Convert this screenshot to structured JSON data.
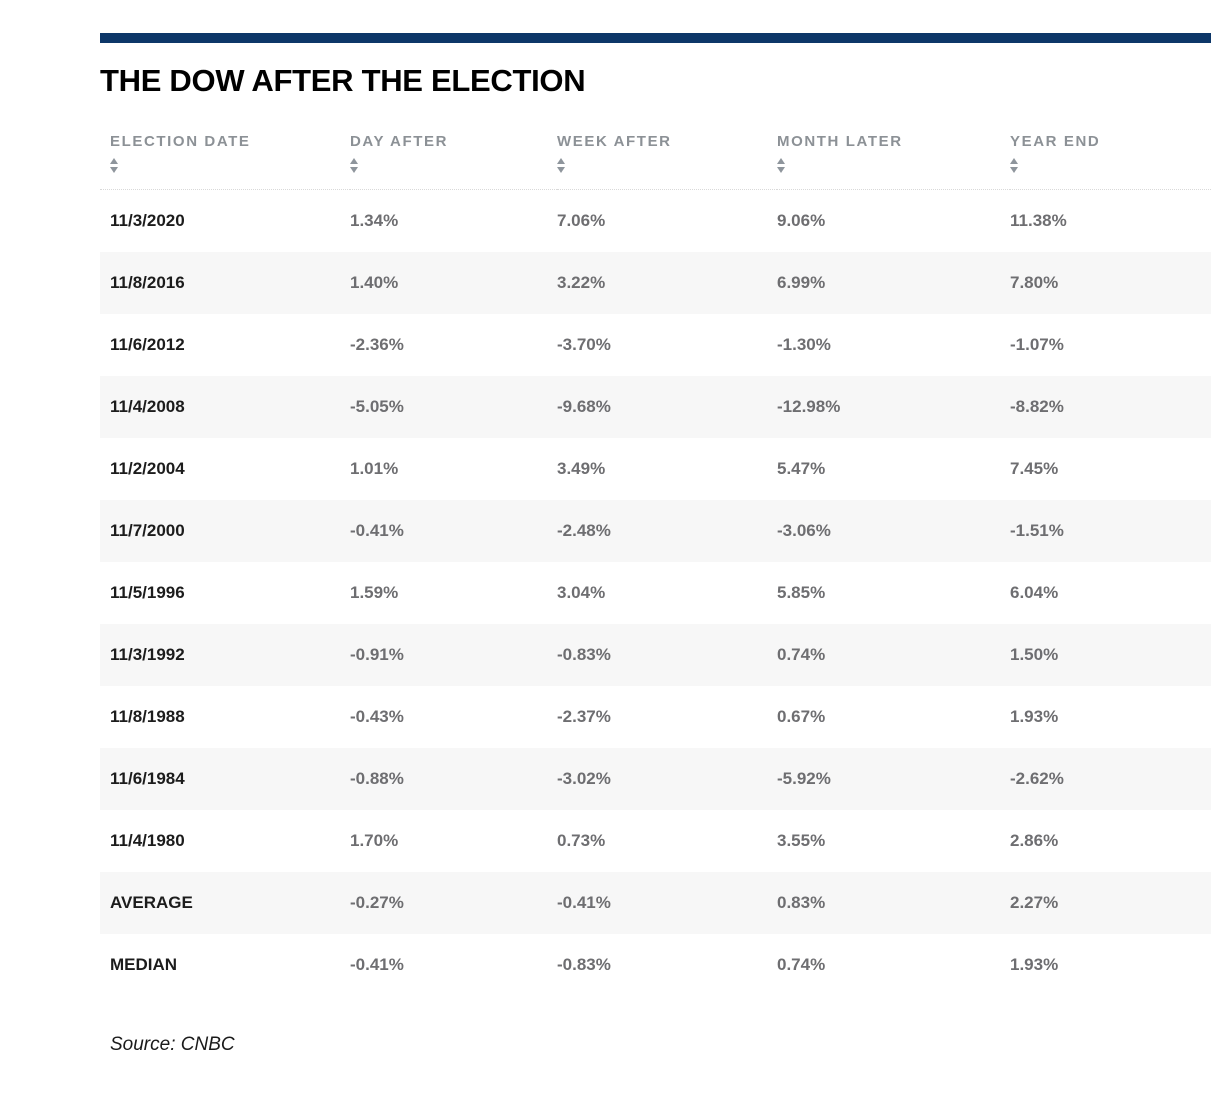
{
  "header": {
    "title": "THE DOW AFTER THE ELECTION"
  },
  "table": {
    "columns": [
      {
        "label": "ELECTION DATE"
      },
      {
        "label": "DAY AFTER"
      },
      {
        "label": "WEEK AFTER"
      },
      {
        "label": "MONTH LATER"
      },
      {
        "label": "YEAR END"
      }
    ],
    "rows": [
      {
        "cells": [
          "11/3/2020",
          "1.34%",
          "7.06%",
          "9.06%",
          "11.38%"
        ]
      },
      {
        "cells": [
          "11/8/2016",
          "1.40%",
          "3.22%",
          "6.99%",
          "7.80%"
        ]
      },
      {
        "cells": [
          "11/6/2012",
          "-2.36%",
          "-3.70%",
          "-1.30%",
          "-1.07%"
        ]
      },
      {
        "cells": [
          "11/4/2008",
          "-5.05%",
          "-9.68%",
          "-12.98%",
          "-8.82%"
        ]
      },
      {
        "cells": [
          "11/2/2004",
          "1.01%",
          "3.49%",
          "5.47%",
          "7.45%"
        ]
      },
      {
        "cells": [
          "11/7/2000",
          "-0.41%",
          "-2.48%",
          "-3.06%",
          "-1.51%"
        ]
      },
      {
        "cells": [
          "11/5/1996",
          "1.59%",
          "3.04%",
          "5.85%",
          "6.04%"
        ]
      },
      {
        "cells": [
          "11/3/1992",
          "-0.91%",
          "-0.83%",
          "0.74%",
          "1.50%"
        ]
      },
      {
        "cells": [
          "11/8/1988",
          "-0.43%",
          "-2.37%",
          "0.67%",
          "1.93%"
        ]
      },
      {
        "cells": [
          "11/6/1984",
          "-0.88%",
          "-3.02%",
          "-5.92%",
          "-2.62%"
        ]
      },
      {
        "cells": [
          "11/4/1980",
          "1.70%",
          "0.73%",
          "3.55%",
          "2.86%"
        ]
      },
      {
        "cells": [
          "AVERAGE",
          "-0.27%",
          "-0.41%",
          "0.83%",
          "2.27%"
        ]
      },
      {
        "cells": [
          "MEDIAN",
          "-0.41%",
          "-0.83%",
          "0.74%",
          "1.93%"
        ]
      }
    ]
  },
  "footer": {
    "source": "Source: CNBC"
  },
  "colors": {
    "accent_bar": "#0d3768",
    "stripe": "#f7f7f7",
    "header_text": "#8c9196",
    "value_text": "#6e6e71",
    "date_text": "#1c1c1c"
  },
  "chart_data": {
    "type": "table",
    "title": "THE DOW AFTER THE ELECTION",
    "columns": [
      "ELECTION DATE",
      "DAY AFTER",
      "WEEK AFTER",
      "MONTH LATER",
      "YEAR END"
    ],
    "rows": [
      [
        "11/3/2020",
        1.34,
        7.06,
        9.06,
        11.38
      ],
      [
        "11/8/2016",
        1.4,
        3.22,
        6.99,
        7.8
      ],
      [
        "11/6/2012",
        -2.36,
        -3.7,
        -1.3,
        -1.07
      ],
      [
        "11/4/2008",
        -5.05,
        -9.68,
        -12.98,
        -8.82
      ],
      [
        "11/2/2004",
        1.01,
        3.49,
        5.47,
        7.45
      ],
      [
        "11/7/2000",
        -0.41,
        -2.48,
        -3.06,
        -1.51
      ],
      [
        "11/5/1996",
        1.59,
        3.04,
        5.85,
        6.04
      ],
      [
        "11/3/1992",
        -0.91,
        -0.83,
        0.74,
        1.5
      ],
      [
        "11/8/1988",
        -0.43,
        -2.37,
        0.67,
        1.93
      ],
      [
        "11/6/1984",
        -0.88,
        -3.02,
        -5.92,
        -2.62
      ],
      [
        "11/4/1980",
        1.7,
        0.73,
        3.55,
        2.86
      ],
      [
        "AVERAGE",
        -0.27,
        -0.41,
        0.83,
        2.27
      ],
      [
        "MEDIAN",
        -0.41,
        -0.83,
        0.74,
        1.93
      ]
    ],
    "units": "percent change",
    "source": "CNBC",
    "striped_rows": [
      1,
      3,
      5,
      7,
      9,
      11
    ]
  }
}
